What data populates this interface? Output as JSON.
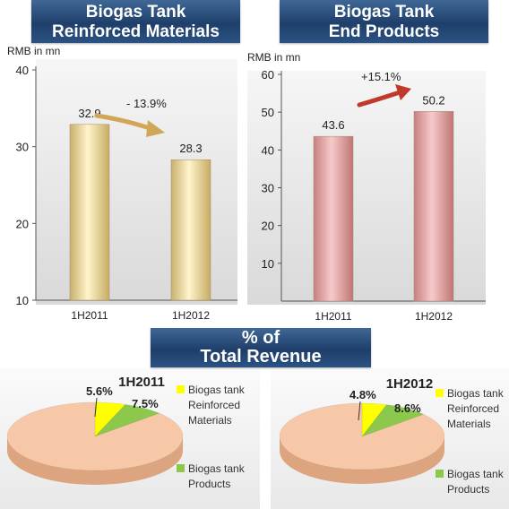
{
  "banners": {
    "left": [
      "Biogas Tank",
      "Reinforced Materials"
    ],
    "right": [
      "Biogas Tank",
      "End Products"
    ],
    "middle": [
      "% of",
      "Total Revenue"
    ]
  },
  "colors": {
    "banner": "#254a78",
    "bar_gold": "#e9d49a",
    "bar_pink": "#dc9a9a",
    "arrow_gold": "#d2a657",
    "arrow_red": "#c0392b",
    "pie_main": "#f7c8a8",
    "pie_yellow": "#ffff00",
    "pie_green": "#8cc84b"
  },
  "chart_data": [
    {
      "type": "bar",
      "ylabel": "RMB  in mn",
      "categories": [
        "1H2011",
        "1H2012"
      ],
      "values": [
        32.9,
        28.3
      ],
      "value_labels": [
        "32.9",
        "28.3"
      ],
      "ylim": [
        10,
        40
      ],
      "yticks": [
        10,
        20,
        30,
        40
      ],
      "change_label": "- 13.9%",
      "grid": false
    },
    {
      "type": "bar",
      "ylabel": "RMB  in mn",
      "categories": [
        "1H2011",
        "1H2012"
      ],
      "values": [
        43.6,
        50.2
      ],
      "value_labels": [
        "43.6",
        "50.2"
      ],
      "ylim": [
        0,
        60
      ],
      "yticks": [
        10,
        20,
        30,
        40,
        50,
        60
      ],
      "change_label": "+15.1%",
      "grid": false
    },
    {
      "type": "pie",
      "title": "1H2011",
      "slices": [
        {
          "label": "Biogas tank Reinforced Materials",
          "value": 5.6,
          "value_label": "5.6%"
        },
        {
          "label": "Biogas tank Products",
          "value": 7.5,
          "value_label": "7.5%"
        },
        {
          "label": "",
          "value": 86.9,
          "value_label": ""
        }
      ],
      "legend": [
        {
          "lines": [
            "Biogas tank",
            "Reinforced",
            "Materials"
          ]
        },
        {
          "lines": [
            "Biogas tank",
            "Products"
          ]
        }
      ],
      "legend_placement": "right"
    },
    {
      "type": "pie",
      "title": "1H2012",
      "slices": [
        {
          "label": "Biogas tank Reinforced Materials",
          "value": 4.8,
          "value_label": "4.8%"
        },
        {
          "label": "Biogas tank Products",
          "value": 8.6,
          "value_label": "8.6%"
        },
        {
          "label": "",
          "value": 86.6,
          "value_label": ""
        }
      ],
      "legend": [
        {
          "lines": [
            "Biogas tank",
            "Reinforced",
            "Materials"
          ]
        },
        {
          "lines": [
            "Biogas tank",
            "Products"
          ]
        }
      ],
      "legend_placement": "right"
    }
  ]
}
